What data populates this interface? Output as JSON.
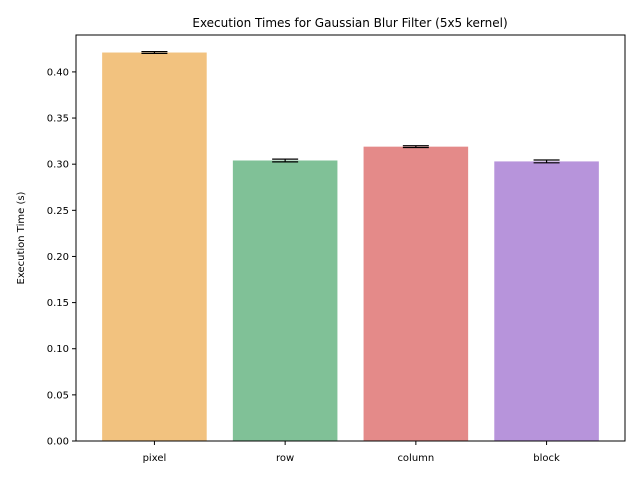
{
  "chart_data": {
    "type": "bar",
    "title": "Execution Times for Gaussian Blur Filter (5x5 kernel)",
    "xlabel": "",
    "ylabel": "Execution Time (s)",
    "categories": [
      "pixel",
      "row",
      "column",
      "block"
    ],
    "values": [
      0.421,
      0.304,
      0.319,
      0.303
    ],
    "errors": [
      0.001,
      0.0015,
      0.001,
      0.0015
    ],
    "colors": [
      "#f2c27f",
      "#80c197",
      "#e48a89",
      "#b794db"
    ],
    "ylim": [
      0,
      0.44
    ],
    "yticks": [
      "0.00",
      "0.05",
      "0.10",
      "0.15",
      "0.20",
      "0.25",
      "0.30",
      "0.35",
      "0.40"
    ],
    "ytick_values": [
      0,
      0.05,
      0.1,
      0.15,
      0.2,
      0.25,
      0.3,
      0.35,
      0.4
    ],
    "grid": false,
    "legend": "none"
  }
}
